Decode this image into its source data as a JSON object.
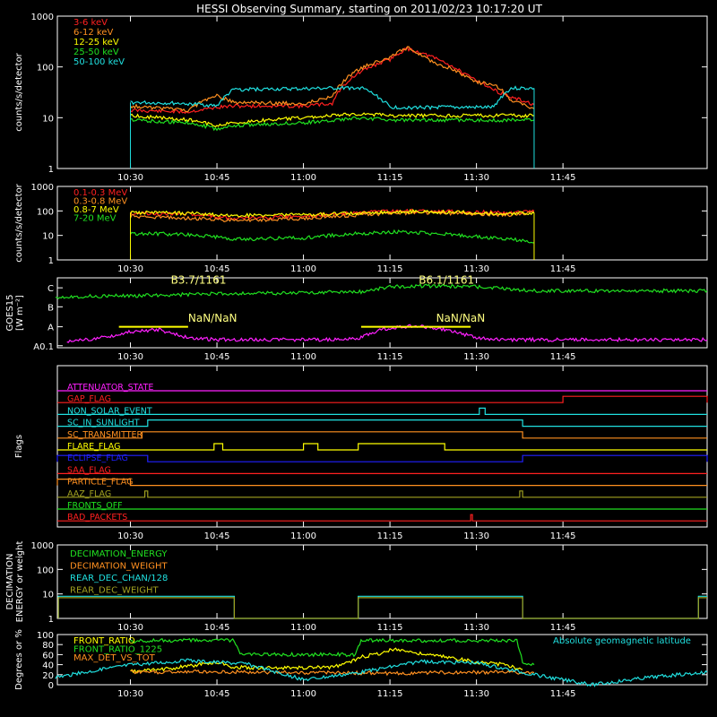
{
  "title": "HESSI Observing Summary, starting on 2011/02/23 10:17:20 UT",
  "x_ticks": [
    "10:30",
    "10:45",
    "11:00",
    "11:15",
    "11:30",
    "11:45"
  ],
  "x_tick_minutes": [
    630,
    645,
    660,
    675,
    690,
    705
  ],
  "x_range_minutes": [
    617.33,
    730
  ],
  "chart_data": [
    {
      "type": "line",
      "id": "lightcurves",
      "ylabel": "counts/s/detector",
      "yscale": "log",
      "ylim": [
        1,
        1000
      ],
      "ytick_labels": [
        "1",
        "10",
        "100",
        "1000"
      ],
      "series": [
        {
          "name": "3-6 keV",
          "color": "#ff2020",
          "x": [
            630,
            640,
            645,
            648,
            660,
            665,
            670,
            675,
            678,
            682,
            688,
            690,
            693,
            696,
            700
          ],
          "y": [
            14,
            13,
            16,
            17,
            17,
            19,
            80,
            140,
            230,
            160,
            70,
            55,
            35,
            25,
            18
          ]
        },
        {
          "name": "6-12 keV",
          "color": "#ff9020",
          "x": [
            630,
            640,
            645,
            648,
            660,
            665,
            670,
            675,
            678,
            682,
            688,
            690,
            693,
            696,
            700
          ],
          "y": [
            17,
            14,
            27,
            20,
            19,
            26,
            95,
            150,
            240,
            130,
            65,
            50,
            45,
            22,
            15
          ]
        },
        {
          "name": "12-25 keV",
          "color": "#ffff00",
          "x": [
            630,
            640,
            645,
            648,
            660,
            665,
            670,
            675,
            678,
            682,
            688,
            690,
            693,
            696,
            700
          ],
          "y": [
            11,
            9,
            7,
            8,
            10,
            11,
            12,
            11,
            11,
            11,
            11,
            11,
            11,
            11,
            11
          ]
        },
        {
          "name": "25-50 keV",
          "color": "#20e020",
          "x": [
            630,
            640,
            645,
            648,
            660,
            665,
            670,
            675,
            678,
            682,
            688,
            690,
            693,
            696,
            700
          ],
          "y": [
            9,
            8,
            6,
            7,
            8,
            9,
            10,
            9,
            9,
            9,
            9,
            9,
            9,
            9,
            9
          ]
        },
        {
          "name": "50-100 keV",
          "color": "#20e0e0",
          "x": [
            630,
            640,
            645,
            648,
            660,
            665,
            670,
            675,
            678,
            682,
            688,
            690,
            693,
            696,
            700
          ],
          "y": [
            20,
            19,
            17,
            36,
            37,
            38,
            39,
            16,
            16,
            16,
            16,
            16,
            16,
            38,
            38
          ]
        }
      ]
    },
    {
      "type": "line",
      "id": "high-energy",
      "ylabel": "counts/s/detector",
      "yscale": "log",
      "ylim": [
        1,
        1000
      ],
      "ytick_labels": [
        "1",
        "10",
        "100",
        "1000"
      ],
      "series": [
        {
          "name": "0.1-0.3 MeV",
          "color": "#ff2020",
          "x": [
            630,
            640,
            648,
            660,
            670,
            675,
            680,
            690,
            696,
            700
          ],
          "y": [
            80,
            75,
            50,
            60,
            85,
            95,
            100,
            90,
            85,
            100
          ]
        },
        {
          "name": "0.3-0.8 MeV",
          "color": "#ff9020",
          "x": [
            630,
            640,
            648,
            660,
            670,
            675,
            680,
            690,
            696,
            700
          ],
          "y": [
            60,
            50,
            40,
            50,
            70,
            80,
            85,
            75,
            70,
            90
          ]
        },
        {
          "name": "0.8-7 MeV",
          "color": "#ffff00",
          "x": [
            630,
            640,
            648,
            660,
            670,
            675,
            680,
            690,
            696,
            700
          ],
          "y": [
            85,
            80,
            65,
            70,
            80,
            90,
            95,
            85,
            80,
            85
          ]
        },
        {
          "name": "7-20 MeV",
          "color": "#20e020",
          "x": [
            630,
            640,
            648,
            660,
            670,
            675,
            680,
            690,
            696,
            700
          ],
          "y": [
            12,
            11,
            7,
            8,
            12,
            14,
            13,
            9,
            7,
            5
          ]
        }
      ]
    },
    {
      "type": "line",
      "id": "goes",
      "ylabel_lines": [
        "GOES15",
        "[W m⁻²]"
      ],
      "ytick_labels": [
        "A0.1",
        "A",
        "B",
        "C"
      ],
      "annotations": [
        {
          "text": "B3.7/1161",
          "x": 637,
          "y": 3.2,
          "color": "#ffff80"
        },
        {
          "text": "B6.1/1161",
          "x": 680,
          "y": 3.2,
          "color": "#ffff80"
        },
        {
          "text": "NaN/NaN",
          "x": 640,
          "y": 1.3,
          "color": "#ffff80"
        },
        {
          "text": "NaN/NaN",
          "x": 683,
          "y": 1.3,
          "color": "#ffff80"
        }
      ],
      "series": [
        {
          "name": "GOES long",
          "color": "#20e020",
          "x": [
            617,
            630,
            645,
            660,
            670,
            675,
            680,
            690,
            700,
            730
          ],
          "y": [
            2.55,
            2.6,
            2.7,
            2.75,
            2.8,
            3.05,
            3.1,
            3.05,
            2.85,
            2.85
          ]
        },
        {
          "name": "GOES short",
          "color": "#ff20ff",
          "x": [
            619,
            625,
            630,
            635,
            640,
            645,
            655,
            665,
            670,
            673,
            676,
            680,
            685,
            690,
            695,
            700,
            710,
            720,
            730
          ],
          "y": [
            0.3,
            0.5,
            0.8,
            0.9,
            0.5,
            0.4,
            0.4,
            0.4,
            0.5,
            0.9,
            1.0,
            1.1,
            0.9,
            0.5,
            0.4,
            0.4,
            0.4,
            0.4,
            0.4
          ]
        }
      ]
    },
    {
      "type": "timeline",
      "id": "flags",
      "ylabel": "Flags",
      "flags": [
        {
          "name": "ATTENUATOR_STATE",
          "color": "#ff20ff",
          "segments": []
        },
        {
          "name": "GAP_FLAG",
          "color": "#ff2020",
          "segments": [
            [
              705,
              730
            ]
          ]
        },
        {
          "name": "NON_SOLAR_EVENT",
          "color": "#20e0e0",
          "segments": [
            [
              690.5,
              691.5
            ]
          ]
        },
        {
          "name": "SC_IN_SUNLIGHT",
          "color": "#20e0e0",
          "segments": [
            [
              633,
              698
            ]
          ]
        },
        {
          "name": "SC_TRANSMITTER",
          "color": "#ff9020",
          "segments": [
            [
              632,
              698
            ]
          ]
        },
        {
          "name": "FLARE_FLAG",
          "color": "#ffff00",
          "segments": [
            [
              644.5,
              646
            ],
            [
              660,
              662.5
            ],
            [
              669.5,
              684.5
            ]
          ]
        },
        {
          "name": "ECLIPSE_FLAG",
          "color": "#2020ff",
          "segments": [
            [
              617,
              633
            ],
            [
              698,
              730
            ]
          ]
        },
        {
          "name": "SAA_FLAG",
          "color": "#ff2020",
          "segments": []
        },
        {
          "name": "PARTICLE_FLAG",
          "color": "#ff9020",
          "segments": [
            [
              617,
              630
            ]
          ]
        },
        {
          "name": "AAZ_FLAG",
          "color": "#a0a020",
          "segments": [
            [
              632.5,
              633
            ],
            [
              697.5,
              698
            ]
          ]
        },
        {
          "name": "FRONTS_OFF",
          "color": "#20e020",
          "segments": []
        },
        {
          "name": "BAD_PACKETS",
          "color": "#ff2020",
          "segments": [
            [
              689,
              689.3
            ]
          ]
        }
      ]
    },
    {
      "type": "line",
      "id": "decimation",
      "ylabel_lines": [
        "DECIMATION",
        "ENERGY or weight"
      ],
      "yscale": "log",
      "ylim": [
        1,
        1000
      ],
      "ytick_labels": [
        "1",
        "10",
        "100",
        "1000"
      ],
      "series": [
        {
          "name": "DECIMATION_ENERGY",
          "color": "#20e020",
          "x": [],
          "y": []
        },
        {
          "name": "DECIMATION_WEIGHT",
          "color": "#ff9020",
          "x": [],
          "y": []
        },
        {
          "name": "REAR_DEC_CHAN/128",
          "color": "#20e0e0",
          "x": [
            617.5,
            617.5,
            648,
            648,
            669.5,
            669.5,
            698,
            698,
            728.5,
            728.5,
            730
          ],
          "y": [
            1,
            8,
            8,
            1,
            1,
            8,
            8,
            1,
            1,
            8,
            8
          ]
        },
        {
          "name": "REAR_DEC_WEIGHT",
          "color": "#a0a020",
          "x": [
            617.5,
            617.5,
            648,
            648,
            669.5,
            669.5,
            698,
            698,
            728.5,
            728.5,
            730
          ],
          "y": [
            1,
            7,
            7,
            1,
            1,
            7,
            7,
            1,
            1,
            7,
            7
          ]
        }
      ]
    },
    {
      "type": "line",
      "id": "ratios",
      "ylabel": "Degrees or %",
      "ylim": [
        0,
        100
      ],
      "ytick_labels": [
        "0",
        "20",
        "40",
        "60",
        "80",
        "100"
      ],
      "annotation": {
        "text": "Absolute geomagnetic latitude",
        "color": "#20e0e0"
      },
      "series": [
        {
          "name": "FRONT_RATIO",
          "color": "#ffff00",
          "x": [
            630,
            635,
            640,
            645,
            648,
            655,
            665,
            668,
            670,
            673,
            676,
            680,
            685,
            690,
            695,
            698
          ],
          "y": [
            26,
            30,
            37,
            45,
            35,
            33,
            35,
            45,
            55,
            62,
            72,
            62,
            55,
            45,
            40,
            30
          ]
        },
        {
          "name": "FRONT_RATIO_1225",
          "color": "#20e020",
          "x": [
            630,
            631,
            648,
            649,
            669,
            670,
            697,
            698,
            700
          ],
          "y": [
            85,
            88,
            88,
            60,
            60,
            88,
            88,
            45,
            40
          ]
        },
        {
          "name": "MAX_DET_VS_TOT",
          "color": "#ff9020",
          "x": [
            630,
            645,
            660,
            675,
            690,
            700
          ],
          "y": [
            25,
            26,
            24,
            23,
            25,
            24
          ]
        },
        {
          "name": "Absolute geomagnetic latitude",
          "color": "#20e0e0",
          "x": [
            617,
            630,
            640,
            650,
            660,
            670,
            680,
            690,
            700,
            710,
            720,
            730
          ],
          "y": [
            15,
            40,
            48,
            42,
            10,
            25,
            46,
            44,
            20,
            0,
            15,
            25
          ]
        }
      ]
    }
  ]
}
